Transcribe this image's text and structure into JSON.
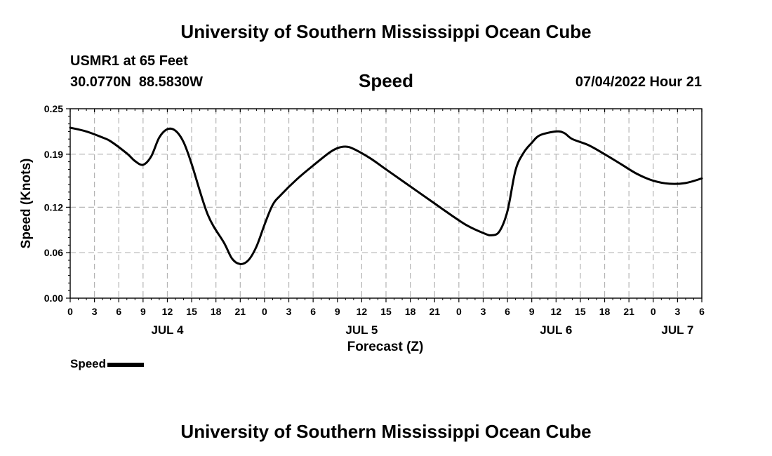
{
  "header": {
    "title": "University of Southern Mississippi Ocean Cube",
    "station": "USMR1 at 65 Feet",
    "coords": "30.0770N  88.5830W",
    "datetime": "07/04/2022 Hour 21"
  },
  "footer": {
    "title": "University of Southern Mississippi Ocean Cube"
  },
  "legend": {
    "label": "Speed"
  },
  "chart_data": {
    "type": "line",
    "title": "Speed",
    "xlabel": "Forecast (Z)",
    "ylabel": "Speed (Knots)",
    "ylim": [
      0,
      0.25
    ],
    "xlim": [
      0,
      78
    ],
    "yticks": [
      0.25,
      0.19,
      0.12,
      0.06,
      0.0
    ],
    "ytick_labels": [
      "0.25",
      "0.19",
      "0.12",
      "0.06",
      "0.00"
    ],
    "xtick_labels": [
      "0",
      "3",
      "6",
      "9",
      "12",
      "15",
      "18",
      "21",
      "0",
      "3",
      "6",
      "9",
      "12",
      "15",
      "18",
      "21",
      "0",
      "3",
      "6",
      "9",
      "12",
      "15",
      "18",
      "21",
      "0",
      "3",
      "6"
    ],
    "day_labels": [
      {
        "label": "JUL 4",
        "hour": 12
      },
      {
        "label": "JUL 5",
        "hour": 36
      },
      {
        "label": "JUL 6",
        "hour": 60
      },
      {
        "label": "JUL 7",
        "hour": 75
      }
    ],
    "grid": true,
    "line_color": "#000000",
    "series": [
      {
        "name": "Speed",
        "x": [
          0,
          2,
          4,
          5,
          7,
          8,
          9,
          10,
          11,
          12,
          13,
          14,
          15,
          17,
          19,
          20,
          21,
          22,
          23,
          24,
          25,
          26,
          28,
          30,
          32,
          33,
          34,
          35,
          37,
          39,
          41,
          43,
          45,
          47,
          49,
          51,
          52,
          53,
          54,
          55,
          56,
          57,
          58,
          60,
          61,
          62,
          64,
          66,
          68,
          70,
          72,
          74,
          76,
          78
        ],
        "y": [
          0.225,
          0.22,
          0.212,
          0.207,
          0.191,
          0.181,
          0.176,
          0.187,
          0.212,
          0.223,
          0.221,
          0.206,
          0.177,
          0.11,
          0.073,
          0.052,
          0.045,
          0.05,
          0.068,
          0.097,
          0.123,
          0.136,
          0.157,
          0.175,
          0.192,
          0.198,
          0.2,
          0.197,
          0.185,
          0.17,
          0.155,
          0.14,
          0.125,
          0.11,
          0.096,
          0.086,
          0.083,
          0.088,
          0.115,
          0.169,
          0.192,
          0.205,
          0.215,
          0.22,
          0.218,
          0.21,
          0.202,
          0.19,
          0.177,
          0.164,
          0.155,
          0.151,
          0.152,
          0.158
        ]
      }
    ]
  }
}
